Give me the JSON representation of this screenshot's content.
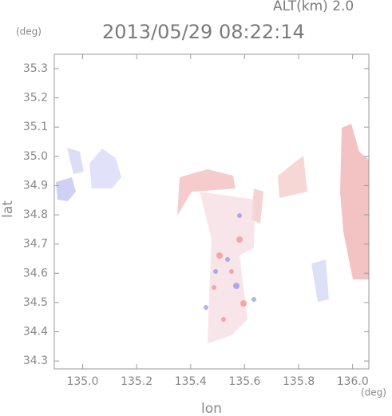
{
  "chart_data": {
    "type": "heatmap",
    "top_label": "ALT(km) 2.0",
    "y_unit": "(deg)",
    "title": "2013/05/29 08:22:14",
    "y_label": "lat",
    "x_unit": "(deg)",
    "x_label": "lon",
    "xlim": [
      134.895,
      136.06
    ],
    "ylim": [
      34.273,
      35.349
    ],
    "xticks": [
      {
        "value": 135.0,
        "label": "135.0"
      },
      135.2,
      135.4,
      135.6,
      135.8,
      {
        "value": 136.0,
        "label": "136.0"
      }
    ],
    "yticks": [
      34.3,
      34.4,
      34.5,
      34.6,
      34.7,
      34.8,
      34.9,
      {
        "value": 35.0,
        "label": "35.0"
      },
      35.1,
      35.2,
      35.3
    ]
  }
}
